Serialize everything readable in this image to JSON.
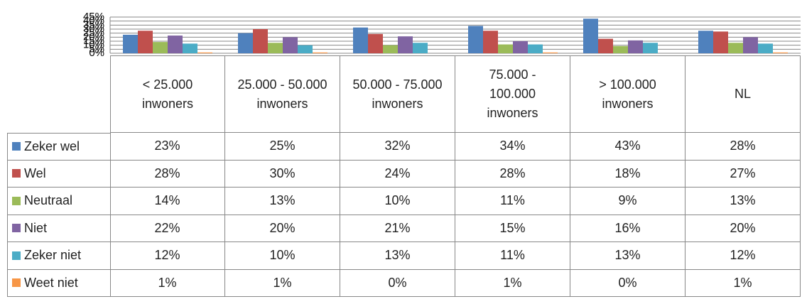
{
  "chart_data": {
    "type": "bar",
    "categories": [
      "< 25.000 inwoners",
      "25.000 - 50.000 inwoners",
      "50.000 - 75.000 inwoners",
      "75.000 - 100.000 inwoners",
      "> 100.000 inwoners",
      "NL"
    ],
    "series": [
      {
        "name": "Zeker wel",
        "color": "#4f81bd",
        "values": [
          23,
          25,
          32,
          34,
          43,
          28
        ],
        "value_labels": [
          "23%",
          "25%",
          "32%",
          "34%",
          "43%",
          "28%"
        ]
      },
      {
        "name": "Wel",
        "color": "#c0504d",
        "values": [
          28,
          30,
          24,
          28,
          18,
          27
        ],
        "value_labels": [
          "28%",
          "30%",
          "24%",
          "28%",
          "18%",
          "27%"
        ]
      },
      {
        "name": "Neutraal",
        "color": "#9bbb59",
        "values": [
          14,
          13,
          10,
          11,
          9,
          13
        ],
        "value_labels": [
          "14%",
          "13%",
          "10%",
          "11%",
          "9%",
          "13%"
        ]
      },
      {
        "name": "Niet",
        "color": "#8064a2",
        "values": [
          22,
          20,
          21,
          15,
          16,
          20
        ],
        "value_labels": [
          "22%",
          "20%",
          "21%",
          "15%",
          "16%",
          "20%"
        ]
      },
      {
        "name": "Zeker niet",
        "color": "#4bacc6",
        "values": [
          12,
          10,
          13,
          11,
          13,
          12
        ],
        "value_labels": [
          "12%",
          "10%",
          "13%",
          "11%",
          "13%",
          "12%"
        ]
      },
      {
        "name": "Weet niet",
        "color": "#f79646",
        "values": [
          1,
          1,
          0,
          1,
          0,
          1
        ],
        "value_labels": [
          "1%",
          "1%",
          "0%",
          "1%",
          "0%",
          "1%"
        ]
      }
    ],
    "ylim": [
      0,
      45
    ],
    "yticks": [
      {
        "value": 0,
        "label": "0%"
      },
      {
        "value": 5,
        "label": "5%"
      },
      {
        "value": 10,
        "label": "10%"
      },
      {
        "value": 15,
        "label": "15%"
      },
      {
        "value": 20,
        "label": "20%"
      },
      {
        "value": 25,
        "label": "25%"
      },
      {
        "value": 30,
        "label": "30%"
      },
      {
        "value": 35,
        "label": "35%"
      },
      {
        "value": 40,
        "label": "40%"
      },
      {
        "value": 45,
        "label": "45%"
      }
    ],
    "grid": true
  }
}
